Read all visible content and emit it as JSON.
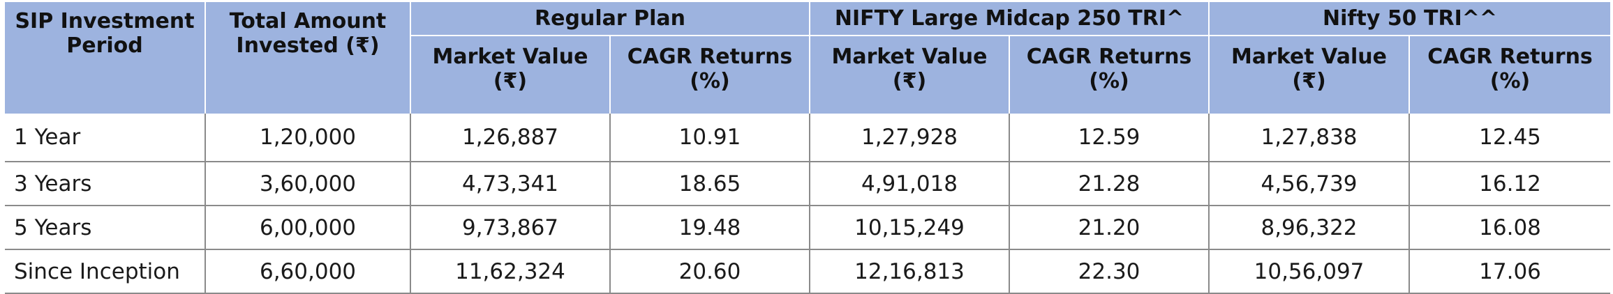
{
  "table": {
    "headers": {
      "period": "SIP Investment Period",
      "invested": "Total Amount Invested (₹)",
      "groups": [
        "Regular Plan",
        "NIFTY Large Midcap 250 TRI^",
        "Nifty 50 TRI^^"
      ],
      "sub": {
        "market_value": "Market Value (₹)",
        "cagr": "CAGR Returns (%)"
      }
    },
    "rows": [
      [
        "1 Year",
        "1,20,000",
        "1,26,887",
        "10.91",
        "1,27,928",
        "12.59",
        "1,27,838",
        "12.45"
      ],
      [
        "3 Years",
        "3,60,000",
        "4,73,341",
        "18.65",
        "4,91,018",
        "21.28",
        "4,56,739",
        "16.12"
      ],
      [
        "5 Years",
        "6,00,000",
        "9,73,867",
        "19.48",
        "10,15,249",
        "21.20",
        "8,96,322",
        "16.08"
      ],
      [
        "Since Inception",
        "6,60,000",
        "11,62,324",
        "20.60",
        "12,16,813",
        "22.30",
        "10,56,097",
        "17.06"
      ]
    ]
  },
  "colors": {
    "header_bg": "#9db3df",
    "header_text": "#111111",
    "grid": "#8a8a8a"
  }
}
